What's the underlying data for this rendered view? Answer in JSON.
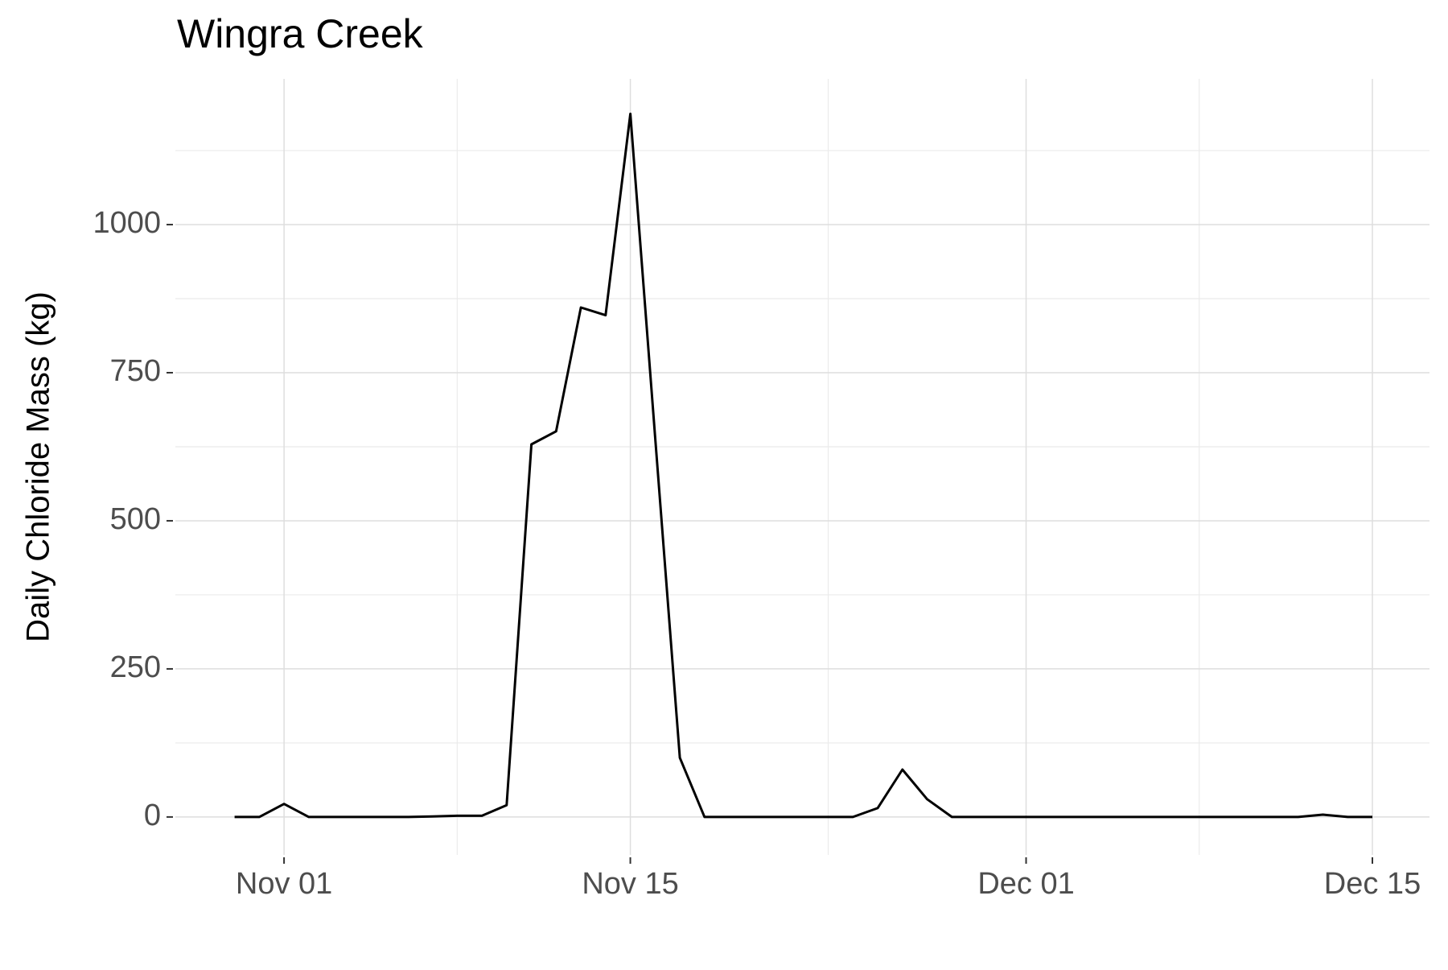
{
  "chart_data": {
    "type": "line",
    "title": "Wingra Creek",
    "y_label": "Daily Chloride Mass (kg)",
    "categories": [
      "Oct 30",
      "Oct 31",
      "Nov 01",
      "Nov 02",
      "Nov 03",
      "Nov 04",
      "Nov 05",
      "Nov 06",
      "Nov 07",
      "Nov 08",
      "Nov 09",
      "Nov 10",
      "Nov 11",
      "Nov 12",
      "Nov 13",
      "Nov 14",
      "Nov 15",
      "Nov 16",
      "Nov 17",
      "Nov 18",
      "Nov 19",
      "Nov 20",
      "Nov 21",
      "Nov 22",
      "Nov 23",
      "Nov 24",
      "Nov 25",
      "Nov 26",
      "Nov 27",
      "Nov 28",
      "Nov 29",
      "Nov 30",
      "Dec 01",
      "Dec 02",
      "Dec 03",
      "Dec 04",
      "Dec 05",
      "Dec 06",
      "Dec 07",
      "Dec 08",
      "Dec 09",
      "Dec 10",
      "Dec 11",
      "Dec 12",
      "Dec 13",
      "Dec 14",
      "Dec 15"
    ],
    "series": [
      {
        "name": "Daily Chloride Mass",
        "color": "#000000",
        "values": [
          0,
          0,
          22,
          0,
          0,
          0,
          0,
          0,
          1,
          2,
          2,
          20,
          629,
          651,
          860,
          847,
          1187,
          643,
          100,
          0,
          0,
          0,
          0,
          0,
          0,
          0,
          15,
          80,
          30,
          0,
          0,
          0,
          0,
          0,
          0,
          0,
          0,
          0,
          0,
          0,
          0,
          0,
          0,
          0,
          4,
          0,
          0
        ]
      }
    ],
    "xticks": [
      "Nov 01",
      "Nov 15",
      "Dec 01",
      "Dec 15"
    ],
    "minor_xticks": [
      "Nov 08",
      "Nov 23",
      "Dec 08"
    ],
    "ylim": [
      -64,
      1246
    ],
    "yticks": [
      0,
      250,
      500,
      750,
      1000
    ],
    "minor_yticks": [
      125,
      375,
      625,
      875,
      1125
    ],
    "grid": true
  }
}
